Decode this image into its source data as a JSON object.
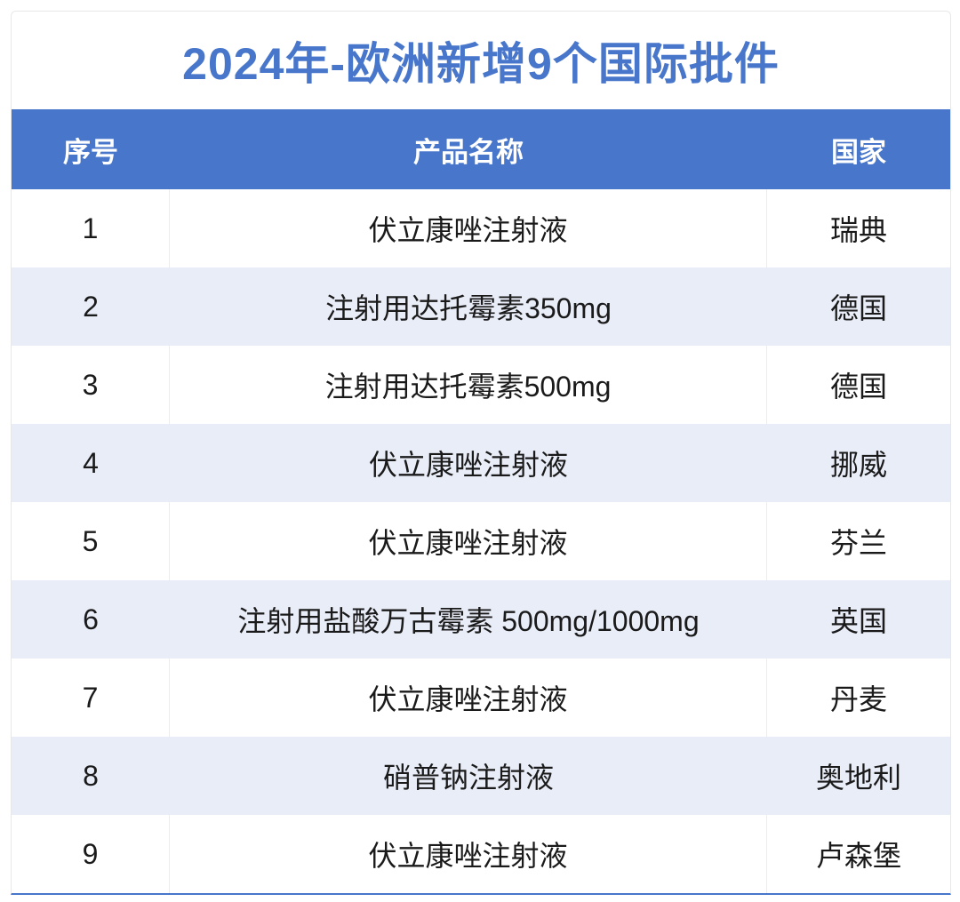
{
  "title": "2024年-欧洲新增9个国际批件",
  "colors": {
    "accent_blue": "#4776cb",
    "band_row": "#e9edf8",
    "divider": "#ececec",
    "text": "#1a1a1a"
  },
  "table": {
    "headers": [
      "序号",
      "产品名称",
      "国家"
    ],
    "rows": [
      {
        "no": "1",
        "product": "伏立康唑注射液",
        "country": "瑞典"
      },
      {
        "no": "2",
        "product": "注射用达托霉素350mg",
        "country": "德国"
      },
      {
        "no": "3",
        "product": "注射用达托霉素500mg",
        "country": "德国"
      },
      {
        "no": "4",
        "product": "伏立康唑注射液",
        "country": "挪威"
      },
      {
        "no": "5",
        "product": "伏立康唑注射液",
        "country": "芬兰"
      },
      {
        "no": "6",
        "product": "注射用盐酸万古霉素 500mg/1000mg",
        "country": "英国"
      },
      {
        "no": "7",
        "product": "伏立康唑注射液",
        "country": "丹麦"
      },
      {
        "no": "8",
        "product": "硝普钠注射液",
        "country": "奥地利"
      },
      {
        "no": "9",
        "product": "伏立康唑注射液",
        "country": "卢森堡"
      }
    ]
  }
}
